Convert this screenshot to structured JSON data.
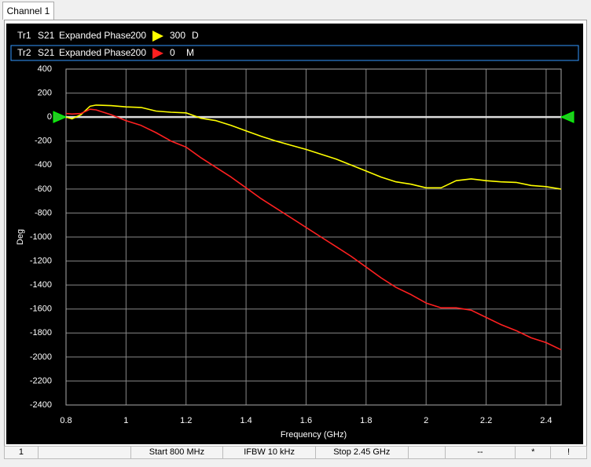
{
  "tab": "Channel 1",
  "chart_data": {
    "type": "line",
    "x_label": "Frequency (GHz)",
    "y_label": "Deg",
    "xlim": [
      0.8,
      2.45
    ],
    "xticks": [
      0.8,
      1,
      1.2,
      1.4,
      1.6,
      1.8,
      2,
      2.2,
      2.4
    ],
    "ylim": [
      -2400,
      400
    ],
    "yticks": [
      400,
      200,
      0,
      -200,
      -400,
      -600,
      -800,
      -1000,
      -1200,
      -1400,
      -1600,
      -1800,
      -2000,
      -2200,
      -2400
    ],
    "grid": true,
    "reference_level": 0,
    "x": [
      0.8,
      0.82,
      0.85,
      0.88,
      0.9,
      0.95,
      1.0,
      1.05,
      1.1,
      1.15,
      1.2,
      1.25,
      1.3,
      1.35,
      1.4,
      1.45,
      1.5,
      1.55,
      1.6,
      1.65,
      1.7,
      1.75,
      1.8,
      1.85,
      1.9,
      1.95,
      2.0,
      2.05,
      2.1,
      2.15,
      2.2,
      2.25,
      2.3,
      2.35,
      2.4,
      2.45
    ],
    "series": [
      {
        "name": "Tr1",
        "trace": "Tr1",
        "parameter": "S21",
        "format": "Expanded Phase",
        "scale": "200",
        "reference": "300",
        "flag": "D",
        "color": "#ffff00",
        "values": [
          0,
          -15,
          20,
          90,
          100,
          95,
          85,
          80,
          50,
          40,
          35,
          -10,
          -30,
          -70,
          -115,
          -160,
          -200,
          -235,
          -270,
          -310,
          -350,
          -400,
          -450,
          -500,
          -540,
          -560,
          -590,
          -590,
          -530,
          -515,
          -530,
          -540,
          -545,
          -570,
          -580,
          -600
        ]
      },
      {
        "name": "Tr2",
        "trace": "Tr2",
        "parameter": "S21",
        "format": "Expanded Phase",
        "scale": "200",
        "reference": "0",
        "flag": "M",
        "color": "#ff2020",
        "values": [
          30,
          25,
          30,
          65,
          60,
          20,
          -30,
          -70,
          -130,
          -200,
          -250,
          -340,
          -420,
          -500,
          -590,
          -680,
          -760,
          -840,
          -920,
          -1000,
          -1080,
          -1160,
          -1250,
          -1340,
          -1420,
          -1480,
          -1550,
          -1590,
          -1590,
          -1610,
          -1670,
          -1730,
          -1780,
          -1840,
          -1880,
          -1940
        ]
      }
    ]
  },
  "status_bar": {
    "channel": "1",
    "start": "Start 800 MHz",
    "ifbw": "IFBW 10 kHz",
    "stop": "Stop 2.45 GHz",
    "sweep": "--",
    "update": "*",
    "alert": "!"
  }
}
